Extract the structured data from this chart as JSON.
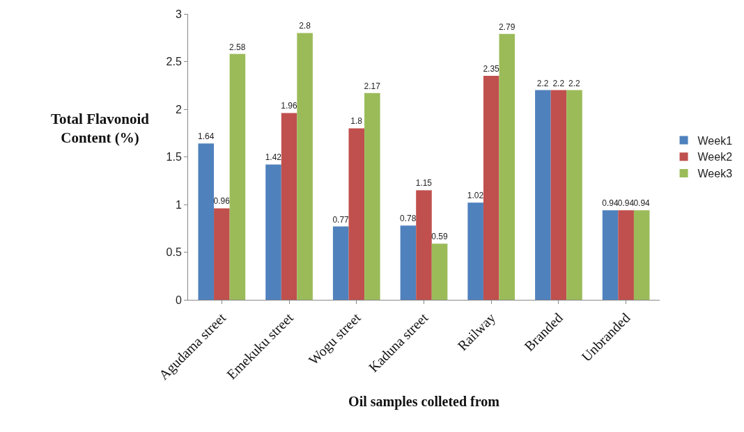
{
  "chart_data": {
    "type": "bar",
    "xlabel": "Oil samples colleted from",
    "ylabel": "Total Flavonoid Content (%)",
    "categories": [
      "Agudama street",
      "Emekuku street",
      "Wogu street",
      "Kaduna street",
      "Railway",
      "Branded",
      "Unbranded"
    ],
    "series": [
      {
        "name": "Week1",
        "color": "#4f81bd",
        "values": [
          1.64,
          1.42,
          0.77,
          0.78,
          1.02,
          2.2,
          0.94
        ]
      },
      {
        "name": "Week2",
        "color": "#c0504d",
        "values": [
          0.96,
          1.96,
          1.8,
          1.15,
          2.35,
          2.2,
          0.94
        ]
      },
      {
        "name": "Week3",
        "color": "#9bbb59",
        "values": [
          2.58,
          2.8,
          2.17,
          0.59,
          2.79,
          2.2,
          0.94
        ]
      }
    ],
    "ylim": [
      0,
      3
    ],
    "yticks": [
      0,
      0.5,
      1,
      1.5,
      2,
      2.5,
      3
    ],
    "grid": false,
    "legend": "right",
    "data_labels": true
  }
}
